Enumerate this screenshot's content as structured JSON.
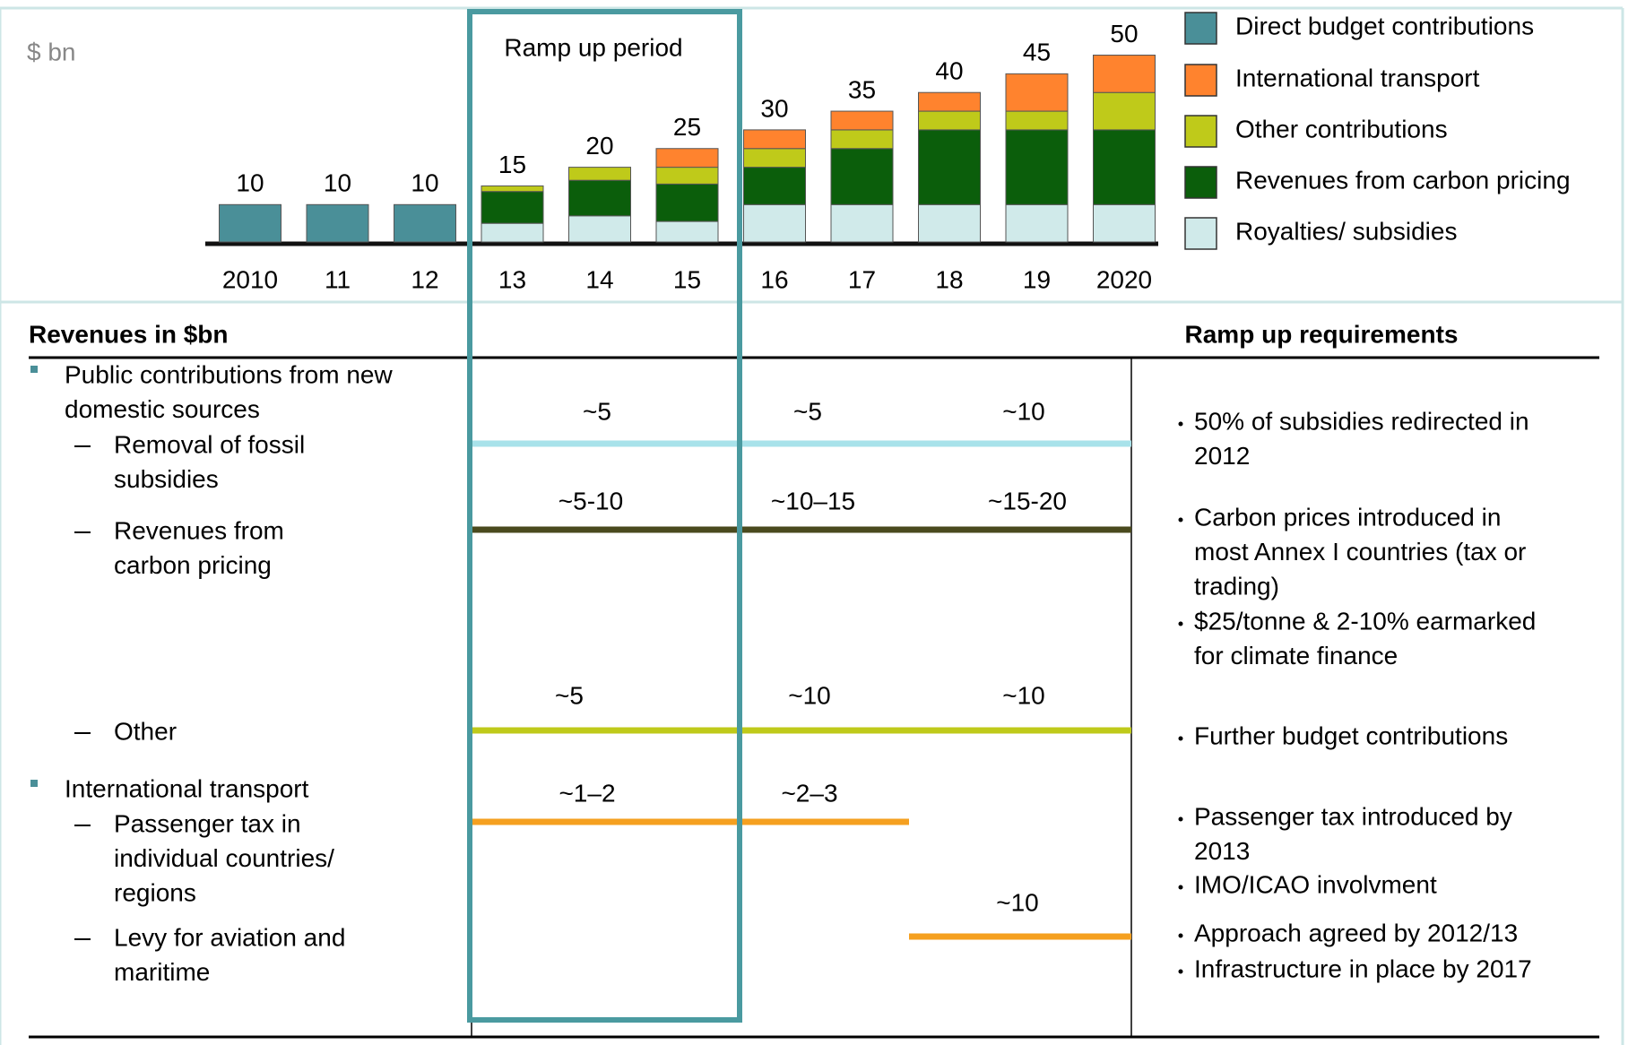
{
  "chart_data": {
    "type": "bar",
    "stacked": true,
    "unit_label": "$ bn",
    "annotation": "Ramp up period",
    "legend": "right",
    "categories": [
      "2010",
      "11",
      "12",
      "13",
      "14",
      "15",
      "16",
      "17",
      "18",
      "19",
      "2020"
    ],
    "series": [
      {
        "name": "Direct budget contributions",
        "color": "#4a8f98",
        "values": [
          10,
          10,
          10,
          null,
          null,
          null,
          null,
          null,
          null,
          null,
          null
        ]
      },
      {
        "name": "International transport",
        "color": "#ff832e",
        "values": [
          null,
          null,
          null,
          null,
          null,
          5,
          5,
          5,
          5,
          10,
          10
        ]
      },
      {
        "name": "Other contributions",
        "color": "#bfca1a",
        "values": [
          null,
          null,
          null,
          1.5,
          3.5,
          4.5,
          5,
          5,
          5,
          5,
          10
        ]
      },
      {
        "name": "Revenues from carbon pricing",
        "color": "#0b5e0b",
        "values": [
          null,
          null,
          null,
          8.5,
          9.5,
          10,
          10,
          15,
          20,
          20,
          20
        ]
      },
      {
        "name": "Royalties/ subsidies",
        "color": "#d0eaea",
        "values": [
          null,
          null,
          null,
          5,
          7,
          5.5,
          10,
          10,
          10,
          10,
          10
        ]
      }
    ],
    "totals": [
      10,
      10,
      10,
      15,
      20,
      25,
      30,
      35,
      40,
      45,
      50
    ]
  },
  "table": {
    "header_left": "Revenues in $bn",
    "header_right": "Ramp up requirements",
    "left_items": [
      {
        "kind": "bullet",
        "lines": [
          "Public contributions from new",
          "domestic sources"
        ]
      },
      {
        "kind": "dash",
        "lines": [
          "Removal of fossil",
          "subsidies"
        ]
      },
      {
        "kind": "dash",
        "lines": [
          "Revenues from",
          "carbon pricing"
        ]
      },
      {
        "kind": "dash",
        "lines": [
          "Other"
        ]
      },
      {
        "kind": "bullet",
        "lines": [
          "International transport"
        ]
      },
      {
        "kind": "dash",
        "lines": [
          "Passenger tax in",
          "individual countries/",
          "regions"
        ]
      },
      {
        "kind": "dash",
        "lines": [
          "Levy for aviation and",
          "maritime"
        ]
      }
    ],
    "value_rows": [
      {
        "color": "#a8e2ea",
        "labels": [
          "~5",
          "~5",
          "~10"
        ]
      },
      {
        "color": "#4a4a1e",
        "labels": [
          "~5-10",
          "~10–15",
          "~15-20"
        ]
      },
      {
        "color": "#bfca1a",
        "labels": [
          "~5",
          "~10",
          "~10"
        ]
      },
      {
        "color": "#f5a020",
        "labels": [
          "~1–2",
          "~2–3"
        ]
      },
      {
        "color": "#f5a020",
        "labels": [
          "~10"
        ]
      }
    ],
    "requirements": [
      [
        "50% of subsidies redirected in",
        "2012"
      ],
      [
        "Carbon prices introduced in",
        "most Annex I countries (tax or",
        "trading)"
      ],
      [
        "$25/tonne & 2-10% earmarked",
        "for climate finance"
      ],
      [
        "Further budget contributions"
      ],
      [
        "Passenger tax introduced by",
        "2013"
      ],
      [
        "IMO/ICAO involvment"
      ],
      [
        "Approach agreed by 2012/13"
      ],
      [
        "Infrastructure in place by 2017"
      ]
    ]
  }
}
